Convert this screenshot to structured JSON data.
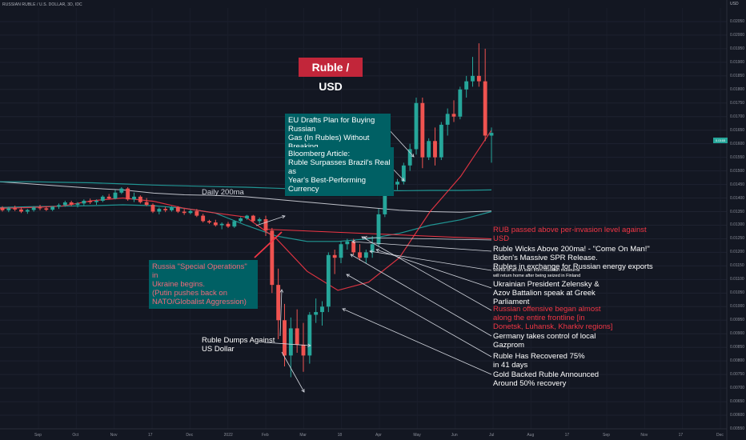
{
  "header": {
    "symbol_line": "RUSSIAN RUBLE / U.S. DOLLAR, 3D, IDC",
    "axis_unit": "USD"
  },
  "title": "Ruble / USD",
  "ma_label": "Daily 200ma",
  "last_price_tag": "0.0165",
  "annotations": {
    "eu_drafts": "EU Drafts Plan for Buying Russian\nGas (In Rubles) Without Breaking\nSanctions",
    "bloomberg": "Bloomberg Article:\nRuble Surpasses Brazil's Real as\nYear's Best-Performing Currency",
    "invasion": "Russia \"Special Operations\" in\nUkraine begins.\n(Putin pushes back on\nNATO/Globalist Aggression)",
    "ruble_dumps": "Ruble Dumps Against\nUS Dollar",
    "rub_passed": "RUB passed above per-invasion level against\nUSD",
    "ruble_wicks": "Ruble Wicks Above 200ma! - \"Come On Man!\"\nBiden's Massive SPR Release.\nRubles in exchange for Russian energy exports",
    "works_of_art": "Works of art on loan from Russian museums\nwill return home after being seized in Finland",
    "zelensky": "Ukrainian President Zelensky &\nAzov Battalion speak at Greek\nParliament",
    "offensive": "Russian offensive began almost\nalong the entire frontline [in\nDonetsk, Luhansk, Kharkiv regions]",
    "germany": "Germany takes control of local\nGazprom",
    "recovered": "Ruble Has Recovered 75%\nin 41 days",
    "gold_backed": "Gold Backed Ruble Announced\nAround 50% recovery"
  },
  "colors": {
    "background": "#131722",
    "up": "#26a69a",
    "down": "#ef5350",
    "title_box": "#c2263a",
    "teal_box": "#006064",
    "ma200": "#d1d4dc",
    "ma_teal": "#22a3a0",
    "ma_pink": "#f23645"
  },
  "chart_data": {
    "type": "candlestick",
    "title": "Ruble / USD",
    "y_axis_unit": "USD",
    "x_tick_labels": [
      "Sep",
      "Oct",
      "Nov",
      "17",
      "Dec",
      "2022",
      "Feb",
      "Mar",
      "18",
      "Apr",
      "May",
      "Jun",
      "Jul",
      "Aug",
      "17",
      "Sep",
      "Nov",
      "17",
      "Dec"
    ],
    "y_tick_labels": [
      "0.02050",
      "0.02000",
      "0.01950",
      "0.01900",
      "0.01850",
      "0.01800",
      "0.01750",
      "0.01700",
      "0.01650",
      "0.01600",
      "0.01550",
      "0.01500",
      "0.01450",
      "0.01400",
      "0.01350",
      "0.01300",
      "0.01250",
      "0.01200",
      "0.01150",
      "0.01100",
      "0.01050",
      "0.01000",
      "0.00950",
      "0.00900",
      "0.00850",
      "0.00800",
      "0.00750",
      "0.00700",
      "0.00650",
      "0.00600",
      "0.00550"
    ],
    "ylim": [
      0.0055,
      0.021
    ],
    "candles": [
      [
        0.01365,
        0.0137,
        0.0135,
        0.01355
      ],
      [
        0.01355,
        0.01368,
        0.01348,
        0.01362
      ],
      [
        0.01362,
        0.01372,
        0.01352,
        0.01358
      ],
      [
        0.01358,
        0.01366,
        0.01345,
        0.0135
      ],
      [
        0.0135,
        0.0136,
        0.01342,
        0.01356
      ],
      [
        0.01356,
        0.0137,
        0.0135,
        0.01365
      ],
      [
        0.01365,
        0.01375,
        0.01355,
        0.01362
      ],
      [
        0.01362,
        0.0137,
        0.01352,
        0.01357
      ],
      [
        0.01357,
        0.0137,
        0.01352,
        0.01368
      ],
      [
        0.01368,
        0.0138,
        0.0136,
        0.01374
      ],
      [
        0.01374,
        0.0139,
        0.01368,
        0.01384
      ],
      [
        0.01384,
        0.0139,
        0.0137,
        0.01375
      ],
      [
        0.01375,
        0.01385,
        0.01365,
        0.0138
      ],
      [
        0.0138,
        0.01395,
        0.01372,
        0.0139
      ],
      [
        0.0139,
        0.01398,
        0.01378,
        0.01385
      ],
      [
        0.01385,
        0.01395,
        0.01375,
        0.0139
      ],
      [
        0.0139,
        0.0141,
        0.01385,
        0.01405
      ],
      [
        0.01405,
        0.01415,
        0.01395,
        0.01398
      ],
      [
        0.01398,
        0.0143,
        0.01395,
        0.0142
      ],
      [
        0.0142,
        0.0144,
        0.01415,
        0.01435
      ],
      [
        0.01435,
        0.0144,
        0.0139,
        0.01395
      ],
      [
        0.01395,
        0.0142,
        0.01385,
        0.01405
      ],
      [
        0.01405,
        0.0141,
        0.0138,
        0.01385
      ],
      [
        0.01385,
        0.014,
        0.0137,
        0.01375
      ],
      [
        0.01375,
        0.0138,
        0.01345,
        0.0135
      ],
      [
        0.0135,
        0.01365,
        0.0134,
        0.0136
      ],
      [
        0.0136,
        0.01368,
        0.01348,
        0.01355
      ],
      [
        0.01355,
        0.0137,
        0.0135,
        0.01366
      ],
      [
        0.01366,
        0.0137,
        0.01345,
        0.0135
      ],
      [
        0.0135,
        0.0136,
        0.01338,
        0.01345
      ],
      [
        0.01345,
        0.01358,
        0.0134,
        0.01352
      ],
      [
        0.01352,
        0.0136,
        0.0133,
        0.01335
      ],
      [
        0.01335,
        0.01342,
        0.0131,
        0.01315
      ],
      [
        0.01315,
        0.0132,
        0.01305,
        0.0131
      ],
      [
        0.0131,
        0.0132,
        0.01295,
        0.013
      ],
      [
        0.013,
        0.0131,
        0.01285,
        0.01305
      ],
      [
        0.01305,
        0.01312,
        0.0129,
        0.01295
      ],
      [
        0.01295,
        0.01318,
        0.0129,
        0.01315
      ],
      [
        0.01315,
        0.0133,
        0.0131,
        0.01325
      ],
      [
        0.01325,
        0.01338,
        0.0132,
        0.01335
      ],
      [
        0.01335,
        0.01338,
        0.0131,
        0.01315
      ],
      [
        0.01315,
        0.01328,
        0.01305,
        0.01322
      ],
      [
        0.01322,
        0.01335,
        0.0126,
        0.0128
      ],
      [
        0.0128,
        0.0129,
        0.0105,
        0.0108
      ],
      [
        0.0108,
        0.0114,
        0.0088,
        0.0095
      ],
      [
        0.0095,
        0.0101,
        0.0078,
        0.0082
      ],
      [
        0.0082,
        0.0096,
        0.0074,
        0.0092
      ],
      [
        0.0092,
        0.0099,
        0.0083,
        0.0086
      ],
      [
        0.0086,
        0.0094,
        0.0076,
        0.0082
      ],
      [
        0.0082,
        0.0098,
        0.0079,
        0.0097
      ],
      [
        0.0097,
        0.0103,
        0.0094,
        0.0098
      ],
      [
        0.0098,
        0.0102,
        0.0093,
        0.01
      ],
      [
        0.01,
        0.012,
        0.0098,
        0.0119
      ],
      [
        0.0119,
        0.0121,
        0.0112,
        0.0118
      ],
      [
        0.0118,
        0.0124,
        0.0116,
        0.0123
      ],
      [
        0.0123,
        0.0125,
        0.0121,
        0.0124
      ],
      [
        0.0124,
        0.0125,
        0.0119,
        0.012
      ],
      [
        0.012,
        0.0123,
        0.0117,
        0.0118
      ],
      [
        0.0118,
        0.0121,
        0.0116,
        0.012
      ],
      [
        0.012,
        0.0126,
        0.0118,
        0.0123
      ],
      [
        0.0123,
        0.0136,
        0.0122,
        0.0134
      ],
      [
        0.0134,
        0.0149,
        0.0133,
        0.0147
      ],
      [
        0.0147,
        0.0149,
        0.0144,
        0.0145
      ],
      [
        0.0145,
        0.0147,
        0.0143,
        0.0146
      ],
      [
        0.0146,
        0.0153,
        0.0145,
        0.0152
      ],
      [
        0.0152,
        0.016,
        0.015,
        0.0158
      ],
      [
        0.0158,
        0.0177,
        0.0156,
        0.0175
      ],
      [
        0.0175,
        0.0177,
        0.0151,
        0.0155
      ],
      [
        0.0155,
        0.0162,
        0.0154,
        0.0161
      ],
      [
        0.0161,
        0.0166,
        0.0152,
        0.0155
      ],
      [
        0.0155,
        0.0168,
        0.0154,
        0.0167
      ],
      [
        0.0167,
        0.0173,
        0.0163,
        0.0171
      ],
      [
        0.0171,
        0.0176,
        0.0168,
        0.017
      ],
      [
        0.017,
        0.0181,
        0.0169,
        0.018
      ],
      [
        0.018,
        0.0185,
        0.0177,
        0.0183
      ],
      [
        0.0183,
        0.0192,
        0.0181,
        0.0185
      ],
      [
        0.0185,
        0.0197,
        0.0181,
        0.0183
      ],
      [
        0.0183,
        0.0195,
        0.0161,
        0.0163
      ],
      [
        0.0163,
        0.0166,
        0.0153,
        0.0164
      ]
    ],
    "series": [
      {
        "name": "Daily 200ma",
        "color": "#d1d4dc",
        "values": [
          0.0146,
          0.01452,
          0.01444,
          0.01436,
          0.0143,
          0.01418,
          0.01412,
          0.0141,
          0.01405,
          0.01395,
          0.01385,
          0.01375,
          0.01365,
          0.01355,
          0.0135,
          0.01348,
          0.01352
        ]
      },
      {
        "name": "",
        "color": "#22a3a0",
        "values": [
          0.0146,
          0.0146,
          0.01458,
          0.01456,
          0.01452,
          0.01448,
          0.01445,
          0.01442,
          0.0144,
          0.01436,
          0.01432,
          0.0143,
          0.01428,
          0.01427,
          0.01428,
          0.01428,
          0.0143
        ]
      },
      {
        "name": "",
        "color": "#22a3a0",
        "values": [
          0.01365,
          0.01368,
          0.0137,
          0.01372,
          0.01375,
          0.01372,
          0.01362,
          0.01345,
          0.013,
          0.0126,
          0.0124,
          0.0124,
          0.0125,
          0.0127,
          0.013,
          0.0132,
          0.0135
        ]
      },
      {
        "name": "",
        "color": "#f23645",
        "values": [
          0.01362,
          0.01365,
          0.0137,
          0.0139,
          0.014,
          0.01388,
          0.01362,
          0.01345,
          0.0133,
          0.0125,
          0.0113,
          0.0106,
          0.0109,
          0.0118,
          0.0135,
          0.0148,
          0.0165
        ]
      }
    ],
    "horizontal_line": 0.0125
  }
}
